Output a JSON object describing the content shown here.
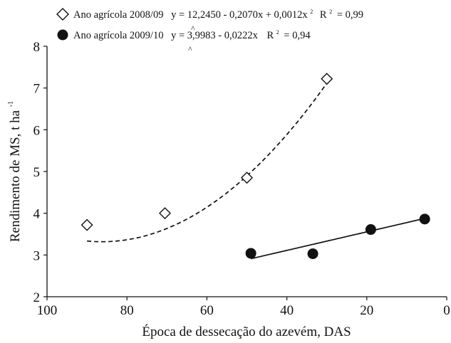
{
  "chart_data": {
    "type": "scatter",
    "xlabel": "Época de dessecação do azevém, DAS",
    "ylabel": "Rendimento de MS, t ha",
    "ylabel_superscript": "-1",
    "xlim": [
      100,
      0
    ],
    "ylim": [
      2,
      8
    ],
    "x_reversed": true,
    "x_ticks": [
      100,
      80,
      60,
      40,
      20,
      0
    ],
    "y_ticks": [
      2,
      3,
      4,
      5,
      6,
      7,
      8
    ],
    "legend_position": "top",
    "series": [
      {
        "name": "Ano agrícola 2008/09",
        "marker": "open-diamond",
        "equation": "y = 12,2450 - 0,2070x + 0,0012x",
        "equation_superscript": "2",
        "r2_label": "R",
        "r2_superscript": "2",
        "r2_value": "= 0,99",
        "fit_style": "dashed",
        "fit_type": "quadratic",
        "fit_coefficients": [
          12.245,
          -0.207,
          0.0012
        ],
        "fit_range": [
          90,
          30
        ],
        "x": [
          90,
          70.5,
          50,
          30
        ],
        "y": [
          3.72,
          4.0,
          4.85,
          7.22
        ]
      },
      {
        "name": "Ano agrícola 2009/10",
        "marker": "filled-circle",
        "equation": "y = 3,9983 - 0,0222x",
        "equation_hat": "^",
        "r2_label": "R",
        "r2_superscript": "2",
        "r2_value": "= 0,94",
        "fit_style": "solid",
        "fit_type": "linear",
        "fit_coefficients": [
          3.9983,
          -0.0222
        ],
        "fit_range": [
          49,
          6
        ],
        "x": [
          49,
          33.5,
          19,
          5.5
        ],
        "y": [
          3.04,
          3.03,
          3.61,
          3.86
        ]
      }
    ]
  }
}
